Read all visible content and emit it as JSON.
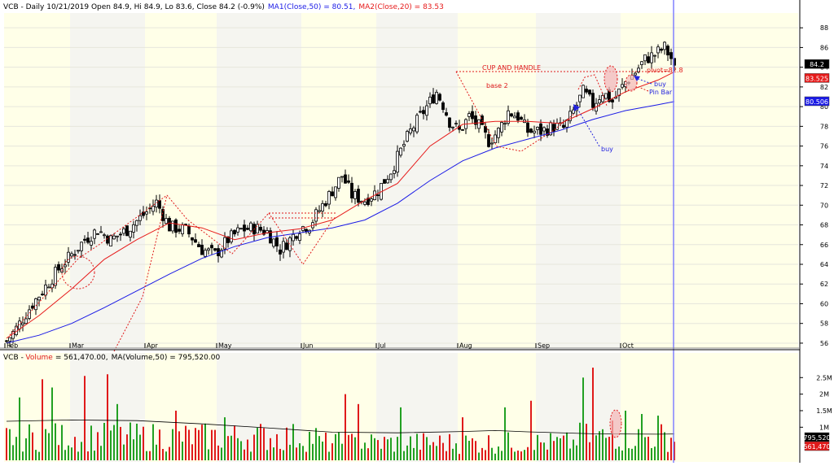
{
  "header": {
    "price_symbol": "VCB",
    "price_info": " - Daily 10/21/2019 Open 84.9, Hi 84.9, Lo 83.6, Close 84.2 (-0.9%)",
    "ma1": "MA1(Close,50) = 80.51,",
    "ma2": "MA2(Close,20) = 83.53",
    "vol_symbol": "VCB",
    "vol_word": "Volume",
    "vol_value": "= 561,470.00,",
    "vol_ma": "MA(Volume,50) = 795,520.00"
  },
  "colors": {
    "band_light": "#ffffe8",
    "band_dark": "#f5f5f0",
    "grid": "#e6e6dc",
    "up": "#ffffff",
    "down": "#000000",
    "ma50": "#1a1ae6",
    "ma20": "#e61a1a",
    "vol_up": "#22a022",
    "vol_down": "#e01a1a",
    "vol_ma": "#000000",
    "annotation": "#e01a1a",
    "buy": "#2222dd",
    "cursor": "#8080ff"
  },
  "annotations": {
    "cup_and_handle": "CUP AND HANDLE",
    "base2": "base 2",
    "pivot": "pivot=82.8",
    "buy_upper": "buy",
    "pin_bar": "Pin Bar",
    "buy_lower": "buy"
  },
  "chart_data": [
    {
      "type": "candlestick",
      "title": "VCB - Daily 10/21/2019 Open 84.9, Hi 84.9, Lo 83.6, Close 84.2 (-0.9%)",
      "x_ticks": [
        "Feb",
        "Mar",
        "Apr",
        "May",
        "Jun",
        "Jul",
        "Aug",
        "Sep",
        "Oct"
      ],
      "y_ticks": [
        56,
        58,
        60,
        62,
        64,
        66,
        68,
        70,
        72,
        74,
        76,
        78,
        80,
        82,
        84,
        86,
        88
      ],
      "ylim": [
        55.5,
        89.5
      ],
      "last_bar": {
        "date": "10/21/2019",
        "open": 84.9,
        "high": 84.9,
        "low": 83.6,
        "close": 84.2,
        "change_pct": -0.9
      },
      "price_tags": [
        {
          "value": "84.2",
          "style": "close"
        },
        {
          "value": "83.525",
          "style": "ma20"
        },
        {
          "value": "80.506",
          "style": "ma50"
        }
      ],
      "waypoints": [
        [
          0,
          56.2
        ],
        [
          3,
          57.5
        ],
        [
          8,
          60
        ],
        [
          13,
          62.2
        ],
        [
          16,
          63.5
        ],
        [
          20,
          65
        ],
        [
          24,
          66.5
        ],
        [
          28,
          67.5
        ],
        [
          32,
          66.5
        ],
        [
          37,
          67.5
        ],
        [
          42,
          69
        ],
        [
          46,
          70.3
        ],
        [
          50,
          67.8
        ],
        [
          55,
          67.5
        ],
        [
          60,
          65.5
        ],
        [
          64,
          65
        ],
        [
          68,
          66.5
        ],
        [
          72,
          67.5
        ],
        [
          76,
          67.7
        ],
        [
          80,
          67.3
        ],
        [
          84,
          65.5
        ],
        [
          87,
          66.5
        ],
        [
          90,
          67.7
        ],
        [
          93,
          68
        ],
        [
          96,
          69.5
        ],
        [
          100,
          71.5
        ],
        [
          103,
          73
        ],
        [
          106,
          71
        ],
        [
          110,
          70.5
        ],
        [
          114,
          71.5
        ],
        [
          118,
          73.5
        ],
        [
          121,
          75.5
        ],
        [
          124,
          77.5
        ],
        [
          127,
          79
        ],
        [
          130,
          80.5
        ],
        [
          132,
          81.5
        ],
        [
          134,
          80.2
        ],
        [
          136,
          78.5
        ],
        [
          139,
          77.5
        ],
        [
          142,
          79
        ],
        [
          145,
          78
        ],
        [
          148,
          76.5
        ],
        [
          151,
          77.5
        ],
        [
          154,
          79.5
        ],
        [
          157,
          79
        ],
        [
          160,
          77.5
        ],
        [
          164,
          77.5
        ],
        [
          168,
          78
        ],
        [
          171,
          77.8
        ],
        [
          174,
          79.5
        ],
        [
          177,
          81.5
        ],
        [
          180,
          80.2
        ],
        [
          183,
          81.5
        ],
        [
          186,
          80.5
        ],
        [
          188,
          81.5
        ],
        [
          190,
          82.5
        ],
        [
          193,
          83.5
        ],
        [
          196,
          84.8
        ],
        [
          199,
          85.3
        ],
        [
          202,
          86
        ],
        [
          204,
          84.9
        ],
        [
          205,
          84.2
        ]
      ],
      "ma50_points": [
        [
          0,
          56
        ],
        [
          10,
          56.8
        ],
        [
          20,
          58
        ],
        [
          30,
          59.6
        ],
        [
          40,
          61.3
        ],
        [
          50,
          63
        ],
        [
          60,
          64.6
        ],
        [
          70,
          65.8
        ],
        [
          80,
          66.7
        ],
        [
          90,
          67.2
        ],
        [
          100,
          67.7
        ],
        [
          110,
          68.5
        ],
        [
          120,
          70.2
        ],
        [
          130,
          72.5
        ],
        [
          140,
          74.5
        ],
        [
          150,
          75.8
        ],
        [
          160,
          76.7
        ],
        [
          170,
          77.6
        ],
        [
          180,
          78.7
        ],
        [
          190,
          79.6
        ],
        [
          200,
          80.2
        ],
        [
          205,
          80.51
        ]
      ],
      "ma20_points": [
        [
          0,
          56.5
        ],
        [
          10,
          58.8
        ],
        [
          20,
          61.5
        ],
        [
          30,
          64.5
        ],
        [
          40,
          66.5
        ],
        [
          50,
          68.2
        ],
        [
          60,
          67.7
        ],
        [
          70,
          66.5
        ],
        [
          80,
          67.2
        ],
        [
          90,
          67.6
        ],
        [
          100,
          68.5
        ],
        [
          110,
          70.5
        ],
        [
          120,
          72.2
        ],
        [
          130,
          76
        ],
        [
          140,
          78.2
        ],
        [
          150,
          78.5
        ],
        [
          160,
          78.5
        ],
        [
          170,
          78.3
        ],
        [
          180,
          79.8
        ],
        [
          190,
          81.5
        ],
        [
          200,
          82.7
        ],
        [
          205,
          83.53
        ]
      ]
    },
    {
      "type": "bar",
      "title": "VCB - Volume = 561,470.00, MA(Volume,50) = 795,520.00",
      "y_ticks": [
        "1M",
        "1.5M",
        "2M",
        "2.5M"
      ],
      "ylim": [
        0,
        2.9
      ],
      "price_tags": [
        {
          "value": "795,520",
          "style": "ma"
        },
        {
          "value": "561,470",
          "style": "volume"
        }
      ],
      "last_volume": 561470,
      "last_ma": 795520,
      "ma_points": [
        [
          0,
          1.18
        ],
        [
          20,
          1.22
        ],
        [
          40,
          1.2
        ],
        [
          60,
          1.1
        ],
        [
          80,
          0.98
        ],
        [
          100,
          0.85
        ],
        [
          120,
          0.83
        ],
        [
          140,
          0.87
        ],
        [
          150,
          0.9
        ],
        [
          160,
          0.86
        ],
        [
          180,
          0.8
        ],
        [
          200,
          0.79
        ],
        [
          205,
          0.7955
        ]
      ]
    }
  ]
}
